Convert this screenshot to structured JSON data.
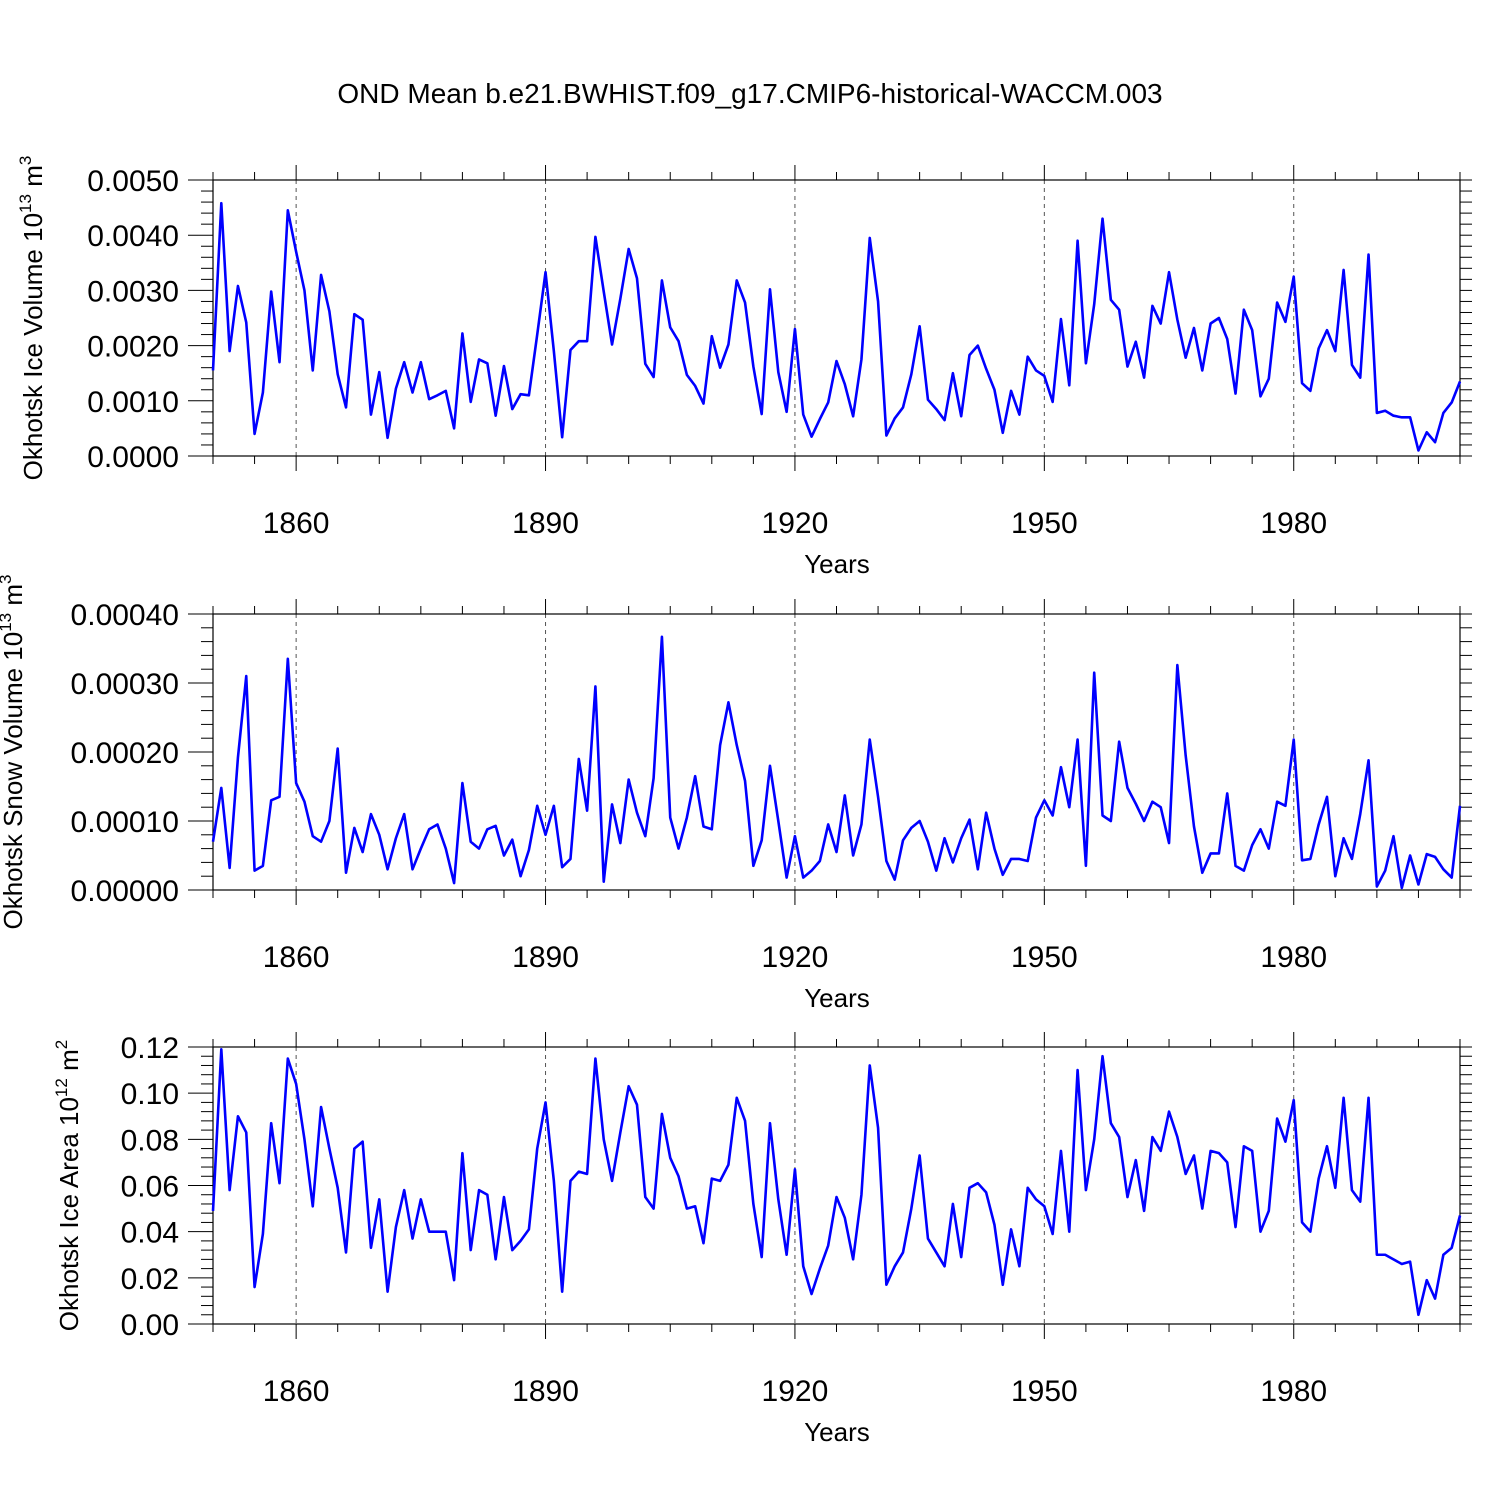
{
  "title": "OND Mean b.e21.BWHIST.f09_g17.CMIP6-historical-WACCM.003",
  "colors": {
    "series": "#0000ff",
    "axis": "#000000",
    "grid": "#555555"
  },
  "chart_data": [
    {
      "type": "line",
      "name": "ice-volume",
      "ylabel": "Okhotsk Ice Volume",
      "ylabel_base": "10",
      "ylabel_exp": "13",
      "ylabel_unit": "m",
      "ylabel_unit_exp": "3",
      "xlabel": "Years",
      "xlim": [
        1850,
        2000
      ],
      "ylim": [
        0,
        0.005
      ],
      "xticks": [
        1860,
        1890,
        1920,
        1950,
        1980
      ],
      "xtick_labels": [
        "1860",
        "1890",
        "1920",
        "1950",
        "1980"
      ],
      "yticks": [
        0,
        0.001,
        0.002,
        0.003,
        0.004,
        0.005
      ],
      "ytick_labels": [
        "0.0000",
        "0.0010",
        "0.0020",
        "0.0030",
        "0.0040",
        "0.0050"
      ],
      "grid": "dashed vertical at labeled years",
      "x_start": 1850,
      "values": [
        0.00155,
        0.00458,
        0.0019,
        0.00308,
        0.00242,
        0.0004,
        0.00115,
        0.00298,
        0.0017,
        0.00445,
        0.0037,
        0.003,
        0.00155,
        0.00328,
        0.00262,
        0.00148,
        0.00088,
        0.00257,
        0.00247,
        0.00075,
        0.00152,
        0.00033,
        0.00122,
        0.0017,
        0.00115,
        0.0017,
        0.00103,
        0.0011,
        0.00118,
        0.0005,
        0.00222,
        0.00098,
        0.00175,
        0.00168,
        0.00073,
        0.00163,
        0.00085,
        0.00112,
        0.0011,
        0.0022,
        0.00333,
        0.0019,
        0.00034,
        0.00192,
        0.00208,
        0.00208,
        0.00397,
        0.00298,
        0.00202,
        0.00285,
        0.00375,
        0.00322,
        0.00167,
        0.00143,
        0.00318,
        0.00233,
        0.00208,
        0.00147,
        0.00127,
        0.00095,
        0.00217,
        0.0016,
        0.00202,
        0.00318,
        0.00278,
        0.00162,
        0.00076,
        0.00302,
        0.00152,
        0.0008,
        0.0023,
        0.00075,
        0.00035,
        0.00067,
        0.00097,
        0.00172,
        0.0013,
        0.00072,
        0.00175,
        0.00395,
        0.0028,
        0.00037,
        0.00068,
        0.00088,
        0.00148,
        0.00235,
        0.00102,
        0.00085,
        0.00065,
        0.0015,
        0.00072,
        0.00183,
        0.002,
        0.00158,
        0.0012,
        0.00042,
        0.00118,
        0.00075,
        0.0018,
        0.00155,
        0.00145,
        0.00098,
        0.00248,
        0.00128,
        0.0039,
        0.00168,
        0.00275,
        0.0043,
        0.00283,
        0.00265,
        0.00162,
        0.00207,
        0.00142,
        0.00272,
        0.0024,
        0.00333,
        0.00247,
        0.00178,
        0.00232,
        0.00155,
        0.0024,
        0.0025,
        0.00212,
        0.00113,
        0.00265,
        0.00228,
        0.00108,
        0.0014,
        0.00278,
        0.00243,
        0.00325,
        0.00132,
        0.00118,
        0.00195,
        0.00228,
        0.0019,
        0.00337,
        0.00165,
        0.00142,
        0.00365,
        0.00078,
        0.00082,
        0.00073,
        0.0007,
        0.0007,
        0.0001,
        0.00043,
        0.00025,
        0.00078,
        0.00097,
        0.00135
      ]
    },
    {
      "type": "line",
      "name": "snow-volume",
      "ylabel": "Okhotsk Snow Volume",
      "ylabel_base": "10",
      "ylabel_exp": "13",
      "ylabel_unit": "m",
      "ylabel_unit_exp": "3",
      "xlabel": "Years",
      "xlim": [
        1850,
        2000
      ],
      "ylim": [
        0,
        0.0004
      ],
      "xticks": [
        1860,
        1890,
        1920,
        1950,
        1980
      ],
      "xtick_labels": [
        "1860",
        "1890",
        "1920",
        "1950",
        "1980"
      ],
      "yticks": [
        0,
        0.0001,
        0.0002,
        0.0003,
        0.0004
      ],
      "ytick_labels": [
        "0.00000",
        "0.00010",
        "0.00020",
        "0.00030",
        "0.00040"
      ],
      "grid": "dashed vertical at labeled years",
      "x_start": 1850,
      "values": [
        7e-05,
        0.000148,
        3.2e-05,
        0.000192,
        0.00031,
        2.8e-05,
        3.5e-05,
        0.00013,
        0.000135,
        0.000335,
        0.000155,
        0.000128,
        7.8e-05,
        7e-05,
        0.0001,
        0.000205,
        2.5e-05,
        9e-05,
        5.5e-05,
        0.00011,
        8e-05,
        3e-05,
        7.5e-05,
        0.00011,
        3e-05,
        6e-05,
        8.8e-05,
        9.5e-05,
        6e-05,
        1e-05,
        0.000155,
        7e-05,
        6e-05,
        8.8e-05,
        9.3e-05,
        5e-05,
        7.3e-05,
        2e-05,
        5.8e-05,
        0.000122,
        8e-05,
        0.000122,
        3.3e-05,
        4.5e-05,
        0.00019,
        0.000115,
        0.000295,
        1.2e-05,
        0.000124,
        6.8e-05,
        0.00016,
        0.000112,
        7.8e-05,
        0.000162,
        0.000367,
        0.000105,
        6e-05,
        0.000105,
        0.000165,
        9.2e-05,
        8.8e-05,
        0.00021,
        0.000272,
        0.00021,
        0.000158,
        3.5e-05,
        7.2e-05,
        0.00018,
        0.0001,
        1.8e-05,
        7.8e-05,
        1.8e-05,
        2.8e-05,
        4.2e-05,
        9.5e-05,
        5.5e-05,
        0.000137,
        5e-05,
        9.5e-05,
        0.000218,
        0.000135,
        4.2e-05,
        1.5e-05,
        7.2e-05,
        9e-05,
        0.0001,
        7e-05,
        2.8e-05,
        7.5e-05,
        4e-05,
        7.5e-05,
        0.000102,
        3e-05,
        0.000112,
        6e-05,
        2.2e-05,
        4.5e-05,
        4.5e-05,
        4.2e-05,
        0.000105,
        0.00013,
        0.000108,
        0.000178,
        0.00012,
        0.000218,
        3.5e-05,
        0.000315,
        0.000108,
        0.0001,
        0.000215,
        0.000148,
        0.000125,
        0.0001,
        0.000128,
        0.00012,
        6.8e-05,
        0.000326,
        0.000195,
        9.2e-05,
        2.5e-05,
        5.3e-05,
        5.3e-05,
        0.00014,
        3.5e-05,
        2.8e-05,
        6.5e-05,
        8.8e-05,
        6e-05,
        0.000128,
        0.000122,
        0.000218,
        4.3e-05,
        4.5e-05,
        9.5e-05,
        0.000135,
        2e-05,
        7.5e-05,
        4.5e-05,
        0.00011,
        0.000188,
        5e-06,
        2.8e-05,
        7.8e-05,
        3e-06,
        5e-05,
        8e-06,
        5.2e-05,
        4.8e-05,
        3e-05,
        1.8e-05,
        0.000122
      ]
    },
    {
      "type": "line",
      "name": "ice-area",
      "ylabel": "Okhotsk Ice Area",
      "ylabel_base": "10",
      "ylabel_exp": "12",
      "ylabel_unit": "m",
      "ylabel_unit_exp": "2",
      "xlabel": "Years",
      "xlim": [
        1850,
        2000
      ],
      "ylim": [
        0,
        0.12
      ],
      "xticks": [
        1860,
        1890,
        1920,
        1950,
        1980
      ],
      "xtick_labels": [
        "1860",
        "1890",
        "1920",
        "1950",
        "1980"
      ],
      "yticks": [
        0,
        0.02,
        0.04,
        0.06,
        0.08,
        0.1,
        0.12
      ],
      "ytick_labels": [
        "0.00",
        "0.02",
        "0.04",
        "0.06",
        "0.08",
        "0.10",
        "0.12"
      ],
      "grid": "dashed vertical at labeled years",
      "x_start": 1850,
      "values": [
        0.049,
        0.119,
        0.058,
        0.09,
        0.083,
        0.016,
        0.039,
        0.087,
        0.061,
        0.115,
        0.104,
        0.08,
        0.051,
        0.094,
        0.076,
        0.059,
        0.031,
        0.076,
        0.079,
        0.033,
        0.054,
        0.014,
        0.042,
        0.058,
        0.037,
        0.054,
        0.04,
        0.04,
        0.04,
        0.019,
        0.074,
        0.032,
        0.058,
        0.056,
        0.028,
        0.055,
        0.032,
        0.036,
        0.041,
        0.076,
        0.096,
        0.062,
        0.014,
        0.062,
        0.066,
        0.065,
        0.115,
        0.08,
        0.062,
        0.083,
        0.103,
        0.095,
        0.055,
        0.05,
        0.091,
        0.072,
        0.064,
        0.05,
        0.051,
        0.035,
        0.063,
        0.062,
        0.069,
        0.098,
        0.088,
        0.052,
        0.029,
        0.087,
        0.054,
        0.03,
        0.067,
        0.025,
        0.013,
        0.024,
        0.034,
        0.055,
        0.046,
        0.028,
        0.056,
        0.112,
        0.085,
        0.017,
        0.025,
        0.031,
        0.05,
        0.073,
        0.037,
        0.031,
        0.025,
        0.052,
        0.029,
        0.059,
        0.061,
        0.057,
        0.043,
        0.017,
        0.041,
        0.025,
        0.059,
        0.054,
        0.051,
        0.039,
        0.075,
        0.04,
        0.11,
        0.058,
        0.08,
        0.116,
        0.087,
        0.081,
        0.055,
        0.071,
        0.049,
        0.081,
        0.075,
        0.092,
        0.081,
        0.065,
        0.073,
        0.05,
        0.075,
        0.074,
        0.07,
        0.042,
        0.077,
        0.075,
        0.04,
        0.049,
        0.089,
        0.079,
        0.097,
        0.044,
        0.04,
        0.063,
        0.077,
        0.059,
        0.098,
        0.058,
        0.053,
        0.098,
        0.03,
        0.03,
        0.028,
        0.026,
        0.027,
        0.004,
        0.019,
        0.011,
        0.03,
        0.033,
        0.047
      ]
    }
  ]
}
